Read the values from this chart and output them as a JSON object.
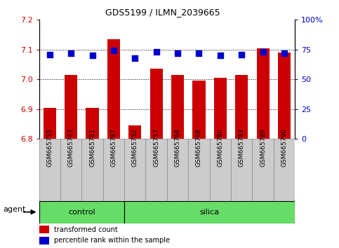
{
  "title": "GDS5199 / ILMN_2039665",
  "samples": [
    "GSM665755",
    "GSM665763",
    "GSM665781",
    "GSM665787",
    "GSM665752",
    "GSM665757",
    "GSM665764",
    "GSM665768",
    "GSM665780",
    "GSM665783",
    "GSM665789",
    "GSM665790"
  ],
  "groups": [
    "control",
    "control",
    "control",
    "control",
    "silica",
    "silica",
    "silica",
    "silica",
    "silica",
    "silica",
    "silica",
    "silica"
  ],
  "transformed_count": [
    6.905,
    7.015,
    6.905,
    7.135,
    6.845,
    7.035,
    7.015,
    6.995,
    7.005,
    7.015,
    7.105,
    7.09
  ],
  "percentile_rank": [
    71,
    72,
    70,
    74,
    68,
    73,
    72,
    72,
    70,
    71,
    73,
    72
  ],
  "ylim_left": [
    6.8,
    7.2
  ],
  "ylim_right": [
    0,
    100
  ],
  "yticks_left": [
    6.8,
    6.9,
    7.0,
    7.1,
    7.2
  ],
  "yticks_right": [
    0,
    25,
    50,
    75,
    100
  ],
  "bar_color": "#cc0000",
  "dot_color": "#0000cc",
  "group_band_color": "#66dd66",
  "bar_width": 0.6,
  "dot_size": 30,
  "agent_label": "agent",
  "legend_bar_label": "transformed count",
  "legend_dot_label": "percentile rank within the sample",
  "n_control": 4,
  "n_silica": 8
}
